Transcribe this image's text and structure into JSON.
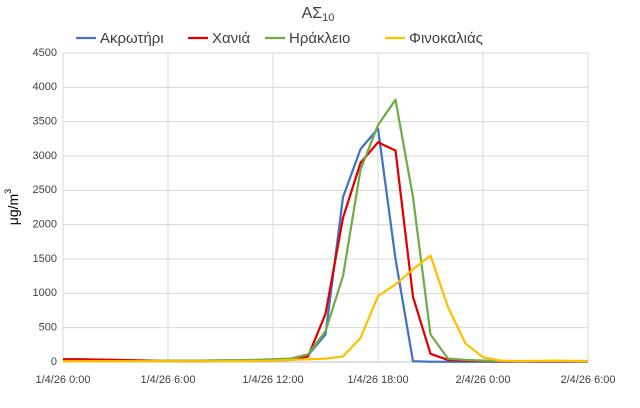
{
  "chart_data": {
    "type": "line",
    "title": "ΑΣ",
    "title_subscript": "10",
    "y_label": "μg/m",
    "y_label_superscript": "3",
    "categories": [
      "1/4/26 0:00",
      null,
      null,
      null,
      null,
      null,
      "1/4/26 6:00",
      null,
      null,
      null,
      null,
      null,
      "1/4/26 12:00",
      null,
      null,
      null,
      null,
      null,
      "1/4/26 18:00",
      null,
      null,
      null,
      null,
      null,
      "2/4/26 0:00",
      null,
      null,
      null,
      null,
      null,
      "2/4/26 6:00"
    ],
    "series": [
      {
        "name": "Ακρωτήρι",
        "color": "#4472c4",
        "values": [
          30,
          30,
          25,
          25,
          20,
          15,
          10,
          10,
          15,
          15,
          20,
          25,
          30,
          35,
          100,
          400,
          2400,
          3100,
          3400,
          1500,
          10,
          5,
          5,
          5,
          5,
          5,
          5,
          5,
          5,
          5,
          5
        ]
      },
      {
        "name": "Χανιά",
        "color": "#e00000",
        "values": [
          40,
          40,
          35,
          30,
          25,
          20,
          15,
          10,
          10,
          15,
          20,
          20,
          25,
          30,
          80,
          700,
          2100,
          2900,
          3200,
          3080,
          950,
          120,
          30,
          20,
          15,
          10,
          10,
          10,
          10,
          10,
          10
        ]
      },
      {
        "name": "Ηράκλειο",
        "color": "#70ad47",
        "values": [
          10,
          10,
          10,
          10,
          10,
          15,
          20,
          20,
          20,
          25,
          25,
          30,
          40,
          50,
          110,
          450,
          1250,
          2800,
          3450,
          3820,
          2400,
          400,
          50,
          30,
          20,
          15,
          15,
          15,
          15,
          15,
          15
        ]
      },
      {
        "name": "Φινοκαλιάς",
        "color": "#ffc000",
        "values": [
          10,
          10,
          10,
          10,
          10,
          10,
          10,
          10,
          10,
          10,
          10,
          15,
          20,
          30,
          40,
          50,
          80,
          350,
          960,
          1130,
          1350,
          1550,
          800,
          270,
          70,
          20,
          10,
          15,
          20,
          15,
          10
        ]
      }
    ],
    "ylim": [
      0,
      4500
    ],
    "yticks": [
      0,
      500,
      1000,
      1500,
      2000,
      2500,
      3000,
      3500,
      4000,
      4500
    ],
    "grid": true,
    "legend": "top"
  }
}
